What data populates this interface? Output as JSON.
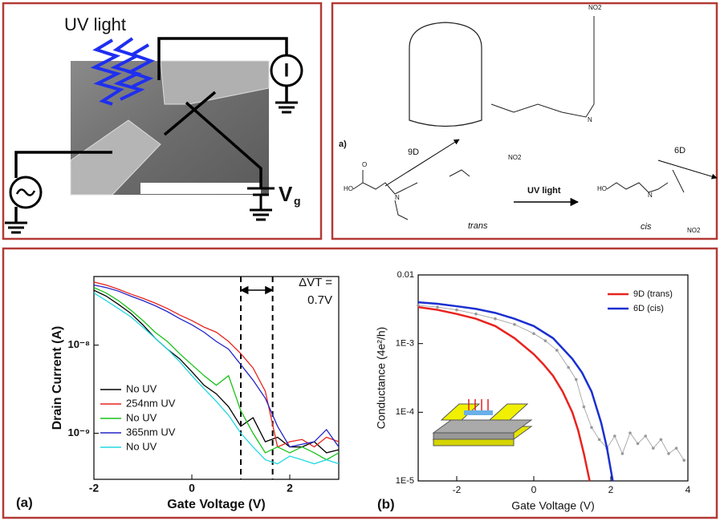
{
  "device": {
    "uv_label": "UV light",
    "meter": "I",
    "gate_v": "V",
    "gate_sub": "g"
  },
  "molecule": {
    "label_a": "a)",
    "arrow_9d": "9D",
    "arrow_6d": "6D",
    "reaction": "UV light",
    "trans": "trans",
    "cis": "cis",
    "nitro": "NO2",
    "hydroxyl": "HO",
    "oxygen": "O",
    "nitrogen": "N"
  },
  "chart_data": [
    {
      "type": "line",
      "panel_label": "(a)",
      "xlabel": "Gate Voltage (V)",
      "ylabel": "Drain Current (A)",
      "log_y": true,
      "xlim": [
        -2,
        3
      ],
      "ylim": [
        3e-10,
        6e-08
      ],
      "xticks": [
        -2,
        0,
        2
      ],
      "yticks": [
        {
          "value": 1e-09,
          "label": "10⁻⁹"
        },
        {
          "value": 1e-08,
          "label": "10⁻⁸"
        }
      ],
      "legend": "lower left",
      "vlines": [
        1,
        1.65
      ],
      "annotation": [
        "ΔVT =",
        "0.7V"
      ],
      "x": [
        -2,
        -1.75,
        -1.5,
        -1.25,
        -1,
        -0.75,
        -0.5,
        -0.25,
        0,
        0.25,
        0.5,
        0.75,
        1,
        1.25,
        1.5,
        1.75,
        2,
        2.25,
        2.5,
        2.75,
        3
      ],
      "series": [
        {
          "name": "No UV",
          "color": "#000000",
          "values": [
            4.2e-08,
            3.6e-08,
            2.9e-08,
            2.3e-08,
            1.7e-08,
            1.2e-08,
            9e-09,
            7e-09,
            5e-09,
            3.5e-09,
            2.8e-09,
            2e-09,
            1.2e-09,
            1.5e-09,
            8e-10,
            9e-10,
            7e-10,
            7e-10,
            8e-10,
            6e-10,
            6.5e-10
          ]
        },
        {
          "name": "254nm UV",
          "color": "#e8231e",
          "values": [
            5.2e-08,
            4.8e-08,
            4.3e-08,
            3.8e-08,
            3.4e-08,
            3e-08,
            2.6e-08,
            2.2e-08,
            1.9e-08,
            1.6e-08,
            1.4e-08,
            1.1e-08,
            8e-09,
            5.5e-09,
            3e-09,
            7e-10,
            8e-10,
            8.5e-10,
            7e-10,
            9e-10,
            8e-10
          ]
        },
        {
          "name": "No UV",
          "color": "#19c219",
          "values": [
            4.5e-08,
            3.9e-08,
            3.2e-08,
            2.5e-08,
            1.9e-08,
            1.4e-08,
            1.1e-08,
            8e-09,
            6e-09,
            4.5e-09,
            3.5e-09,
            4.5e-09,
            1.8e-09,
            1e-09,
            6e-10,
            7e-10,
            6e-10,
            7e-10,
            6e-10,
            5e-10,
            6e-10
          ]
        },
        {
          "name": "365nm UV",
          "color": "#2323c8",
          "values": [
            4.8e-08,
            4.5e-08,
            4.1e-08,
            3.6e-08,
            3.2e-08,
            2.8e-08,
            2.4e-08,
            2e-08,
            1.7e-08,
            1.4e-08,
            1.1e-08,
            9e-09,
            6e-09,
            4e-09,
            2.5e-09,
            1.2e-09,
            7e-10,
            7.5e-10,
            8e-10,
            1.1e-09,
            7e-10
          ]
        },
        {
          "name": "No UV",
          "color": "#22d8e0",
          "values": [
            3.9e-08,
            3.2e-08,
            2.6e-08,
            2.1e-08,
            1.6e-08,
            1.2e-08,
            9e-09,
            6.5e-09,
            4.5e-09,
            3.2e-09,
            2.3e-09,
            1.6e-09,
            1e-09,
            7e-10,
            5e-10,
            4.5e-10,
            5.5e-10,
            5e-10,
            4.5e-10,
            5e-10,
            4.5e-10
          ]
        }
      ]
    },
    {
      "type": "line",
      "panel_label": "(b)",
      "xlabel": "Gate Voltage  (V)",
      "ylabel": "Conductance  (4e²/h)",
      "log_y": true,
      "xlim": [
        -3,
        4
      ],
      "ylim": [
        1e-05,
        0.01
      ],
      "xticks": [
        -2,
        0,
        2,
        4
      ],
      "yticks": [
        {
          "value": 1e-05,
          "label": "1E-5"
        },
        {
          "value": 0.0001,
          "label": "1E-4"
        },
        {
          "value": 0.001,
          "label": "1E-3"
        },
        0.01
      ],
      "legend": "upper right",
      "series": [
        {
          "color": "#999999",
          "markers": true,
          "x": [
            -3,
            -2.5,
            -2,
            -1.5,
            -1,
            -0.5,
            0,
            0.3,
            0.6,
            0.9,
            1.1,
            1.3,
            1.5,
            1.7,
            1.9,
            2.1,
            2.3,
            2.5,
            2.7,
            2.9,
            3.1,
            3.3,
            3.5,
            3.7,
            3.9
          ],
          "values": [
            0.0036,
            0.0034,
            0.0031,
            0.0027,
            0.0023,
            0.0019,
            0.0014,
            0.0011,
            0.0008,
            0.00045,
            0.0003,
            0.00012,
            6e-05,
            4e-05,
            3e-05,
            4.5e-05,
            2.5e-05,
            5e-05,
            3.5e-05,
            4.5e-05,
            3e-05,
            4e-05,
            2.5e-05,
            3e-05,
            2e-05
          ]
        },
        {
          "name": "9D (trans)",
          "color": "#e8231e",
          "x": [
            -3,
            -2.5,
            -2,
            -1.5,
            -1,
            -0.5,
            0,
            0.25,
            0.5,
            0.75,
            1,
            1.15,
            1.3,
            1.45
          ],
          "values": [
            0.0034,
            0.0031,
            0.0027,
            0.0023,
            0.0018,
            0.0012,
            0.0007,
            0.0005,
            0.00034,
            0.0002,
            0.0001,
            5.5e-05,
            2.5e-05,
            1e-05
          ]
        },
        {
          "name": "6D (cis)",
          "color": "#1a2fd0",
          "x": [
            -3,
            -2.5,
            -2,
            -1.5,
            -1,
            -0.5,
            0,
            0.5,
            1,
            1.25,
            1.5,
            1.75,
            1.9,
            2.05
          ],
          "values": [
            0.004,
            0.0038,
            0.0035,
            0.0032,
            0.0028,
            0.0023,
            0.0018,
            0.0012,
            0.0006,
            0.00038,
            0.0002,
            7e-05,
            3e-05,
            1e-05
          ]
        }
      ]
    }
  ]
}
